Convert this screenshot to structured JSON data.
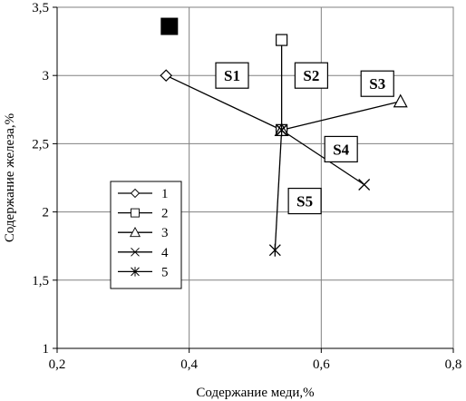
{
  "chart_data": {
    "type": "line",
    "xlabel": "Содержание меди,%",
    "ylabel": "Содержание железа,%",
    "xlim": [
      0.2,
      0.8
    ],
    "ylim": [
      1,
      3.5
    ],
    "xticks": [
      0.2,
      0.4,
      0.6,
      0.8
    ],
    "xtick_labels": [
      "0,2",
      "0,4",
      "0,6",
      "0,8"
    ],
    "yticks": [
      1,
      1.5,
      2,
      2.5,
      3,
      3.5
    ],
    "ytick_labels": [
      "1",
      "1,5",
      "2",
      "2,5",
      "3",
      "3,5"
    ],
    "grid": true,
    "legend_position": "bottom-left",
    "series": [
      {
        "name": "1",
        "marker": "diamond",
        "x": [
          0.54,
          0.365
        ],
        "y": [
          2.6,
          3.0
        ]
      },
      {
        "name": "2",
        "marker": "square",
        "x": [
          0.54,
          0.54
        ],
        "y": [
          2.6,
          3.26
        ]
      },
      {
        "name": "3",
        "marker": "triangle",
        "x": [
          0.54,
          0.72
        ],
        "y": [
          2.6,
          2.81
        ]
      },
      {
        "name": "4",
        "marker": "x",
        "x": [
          0.54,
          0.665
        ],
        "y": [
          2.6,
          2.2
        ]
      },
      {
        "name": "5",
        "marker": "asterisk",
        "x": [
          0.54,
          0.53
        ],
        "y": [
          2.6,
          1.72
        ]
      }
    ],
    "extra_points": [
      {
        "marker": "filled-square",
        "x": 0.37,
        "y": 3.36
      }
    ],
    "annotations": [
      {
        "text": "S1",
        "x": 0.465,
        "y": 3.0
      },
      {
        "text": "S2",
        "x": 0.585,
        "y": 3.0
      },
      {
        "text": "S3",
        "x": 0.685,
        "y": 2.94
      },
      {
        "text": "S4",
        "x": 0.63,
        "y": 2.46
      },
      {
        "text": "S5",
        "x": 0.575,
        "y": 2.08
      }
    ]
  }
}
